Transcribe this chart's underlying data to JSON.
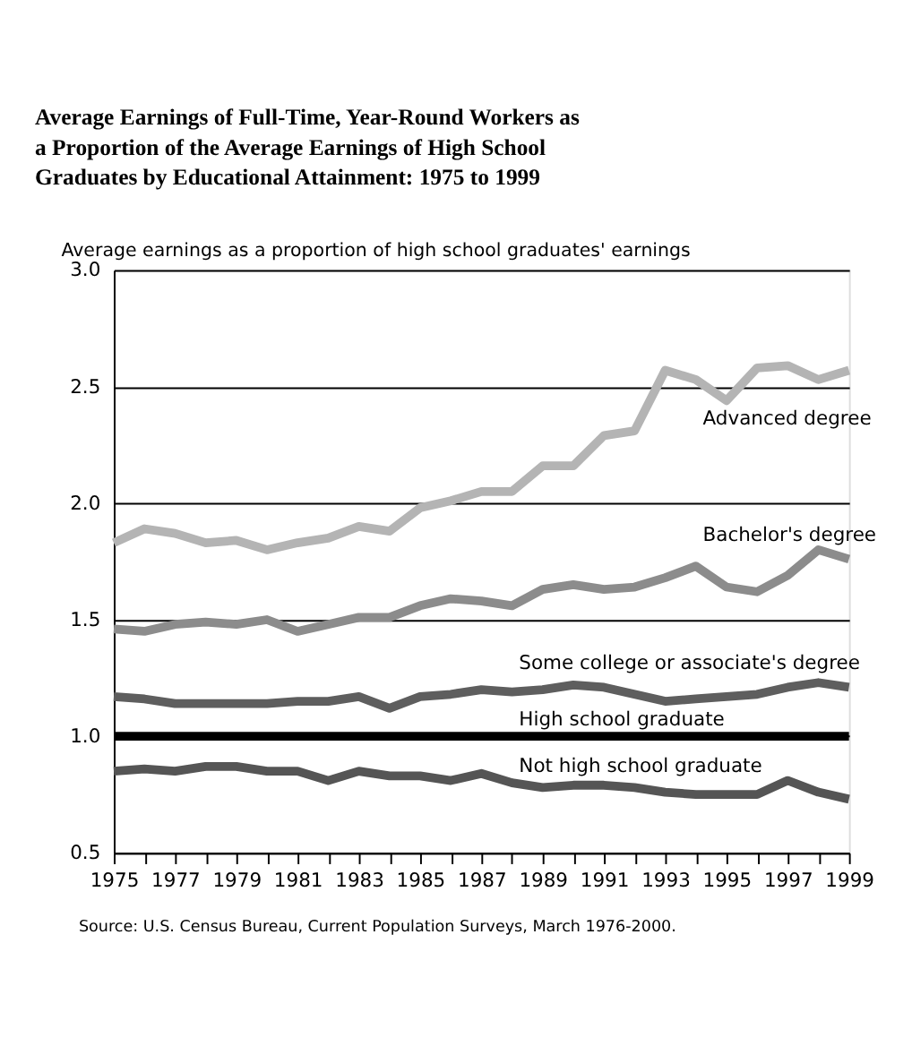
{
  "chart_data": {
    "type": "line",
    "title": "Average Earnings of Full-Time, Year-Round Workers as a Proportion of the Average Earnings of High School Graduates by Educational Attainment: 1975 to 1999",
    "ylabel": "Average earnings as a proportion of high school graduates' earnings",
    "x": [
      1975,
      1976,
      1977,
      1978,
      1979,
      1980,
      1981,
      1982,
      1983,
      1984,
      1985,
      1986,
      1987,
      1988,
      1989,
      1990,
      1991,
      1992,
      1993,
      1994,
      1995,
      1996,
      1997,
      1998,
      1999
    ],
    "series": [
      {
        "name": "Advanced degree",
        "color": "#b4b4b4",
        "values": [
          1.83,
          1.89,
          1.87,
          1.83,
          1.84,
          1.8,
          1.83,
          1.85,
          1.9,
          1.88,
          1.98,
          2.01,
          2.05,
          2.05,
          2.16,
          2.16,
          2.29,
          2.31,
          2.57,
          2.53,
          2.44,
          2.58,
          2.59,
          2.53,
          2.57
        ]
      },
      {
        "name": "Bachelor's degree",
        "color": "#8c8c8c",
        "values": [
          1.46,
          1.45,
          1.48,
          1.49,
          1.48,
          1.5,
          1.45,
          1.48,
          1.51,
          1.51,
          1.56,
          1.59,
          1.58,
          1.56,
          1.63,
          1.65,
          1.63,
          1.64,
          1.68,
          1.73,
          1.64,
          1.62,
          1.69,
          1.8,
          1.76
        ]
      },
      {
        "name": "Some college or associate's degree",
        "color": "#5e5e5e",
        "values": [
          1.17,
          1.16,
          1.14,
          1.14,
          1.14,
          1.14,
          1.15,
          1.15,
          1.17,
          1.12,
          1.17,
          1.18,
          1.2,
          1.19,
          1.2,
          1.22,
          1.21,
          1.18,
          1.15,
          1.16,
          1.17,
          1.18,
          1.21,
          1.23,
          1.21
        ]
      },
      {
        "name": "High school graduate",
        "color": "#000000",
        "values": [
          1.0,
          1.0,
          1.0,
          1.0,
          1.0,
          1.0,
          1.0,
          1.0,
          1.0,
          1.0,
          1.0,
          1.0,
          1.0,
          1.0,
          1.0,
          1.0,
          1.0,
          1.0,
          1.0,
          1.0,
          1.0,
          1.0,
          1.0,
          1.0,
          1.0
        ]
      },
      {
        "name": "Not high school graduate",
        "color": "#555555",
        "values": [
          0.85,
          0.86,
          0.85,
          0.87,
          0.87,
          0.85,
          0.85,
          0.81,
          0.85,
          0.83,
          0.83,
          0.81,
          0.84,
          0.8,
          0.78,
          0.79,
          0.79,
          0.78,
          0.76,
          0.75,
          0.75,
          0.75,
          0.81,
          0.76,
          0.73
        ]
      }
    ],
    "xlim": [
      1975,
      1999
    ],
    "xticks": [
      1975,
      {
        "value": 1976,
        "label": null
      },
      1977,
      {
        "value": 1978,
        "label": null
      },
      1979,
      {
        "value": 1980,
        "label": null
      },
      1981,
      {
        "value": 1982,
        "label": null
      },
      1983,
      {
        "value": 1984,
        "label": null
      },
      1985,
      {
        "value": 1986,
        "label": null
      },
      1987,
      {
        "value": 1988,
        "label": null
      },
      1989,
      {
        "value": 1990,
        "label": null
      },
      1991,
      {
        "value": 1992,
        "label": null
      },
      1993,
      {
        "value": 1994,
        "label": null
      },
      1995,
      {
        "value": 1996,
        "label": null
      },
      1997,
      {
        "value": 1998,
        "label": null
      },
      1999
    ],
    "ylim": [
      0.5,
      3.0
    ],
    "yticks": [
      {
        "value": 0.5,
        "label": "0.5"
      },
      {
        "value": 1.0,
        "label": "1.0"
      },
      1.5,
      {
        "value": 2.0,
        "label": "2.0"
      },
      2.5,
      {
        "value": 3.0,
        "label": "3.0"
      }
    ],
    "grid": "y",
    "legend": false,
    "annotations": [
      "Source: U.S. Census Bureau, Current Population Surveys, March 1976-2000."
    ]
  }
}
